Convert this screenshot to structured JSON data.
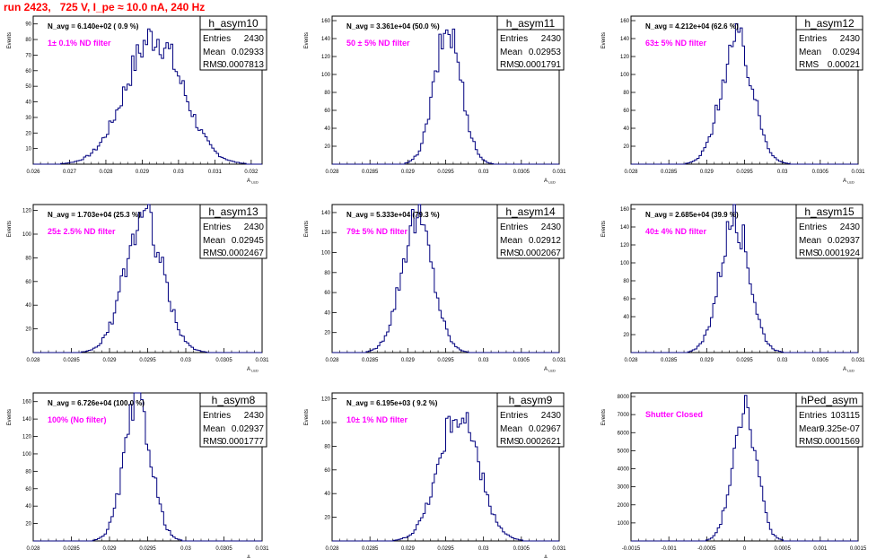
{
  "header": {
    "title": "run 2423,   725 V, I_pe ≈ 10.0 nA, 240 Hz"
  },
  "colors": {
    "histogram_line": "#00007f",
    "note": "#ff00ff",
    "header": "#ff0000",
    "frame": "#000000"
  },
  "chart_data": [
    {
      "type": "histogram",
      "hist_name": "h_asym10",
      "nav_label": "N_avg = 6.140e+02 ( 0.9 %)",
      "note": "1± 0.1% ND filter",
      "stats": {
        "entries": "2430",
        "mean": "0.02933",
        "rms": "0.0007813"
      },
      "ylabel": "Events",
      "xlabel": "A_LED",
      "xlim": [
        0.026,
        0.0323
      ],
      "ylim": [
        0,
        95
      ],
      "xticks": [
        "0.026",
        "0.027",
        "0.028",
        "0.029",
        "0.03",
        "0.031",
        "0.032"
      ],
      "xtick_values": [
        0.026,
        0.027,
        0.028,
        0.029,
        0.03,
        0.031,
        0.032
      ],
      "yticks": [
        "10",
        "20",
        "30",
        "40",
        "50",
        "60",
        "70",
        "80",
        "90"
      ],
      "ytick_values": [
        10,
        20,
        30,
        40,
        50,
        60,
        70,
        80,
        90
      ],
      "gauss": {
        "mu": 0.02933,
        "sigma": 0.00078,
        "peak": 82
      }
    },
    {
      "type": "histogram",
      "hist_name": "h_asym11",
      "nav_label": "N_avg = 3.361e+04 (50.0 %)",
      "note": "50 ± 5% ND filter",
      "stats": {
        "entries": "2430",
        "mean": "0.02953",
        "rms": "0.0001791"
      },
      "ylabel": "Events",
      "xlabel": "A_LED",
      "xlim": [
        0.028,
        0.031
      ],
      "ylim": [
        0,
        165
      ],
      "xticks": [
        "0.028",
        "0.0285",
        "0.029",
        "0.0295",
        "0.03",
        "0.0305",
        "0.031"
      ],
      "xtick_values": [
        0.028,
        0.0285,
        0.029,
        0.0295,
        0.03,
        0.0305,
        0.031
      ],
      "yticks": [
        "20",
        "40",
        "60",
        "80",
        "100",
        "120",
        "140",
        "160"
      ],
      "ytick_values": [
        20,
        40,
        60,
        80,
        100,
        120,
        140,
        160
      ],
      "gauss": {
        "mu": 0.02953,
        "sigma": 0.000179,
        "peak": 150
      }
    },
    {
      "type": "histogram",
      "hist_name": "h_asym12",
      "nav_label": "N_avg = 4.212e+04 (62.6 %)",
      "note": "63± 5% ND filter",
      "stats": {
        "entries": "2430",
        "mean": "0.0294",
        "rms": "0.00021"
      },
      "ylabel": "Events",
      "xlabel": "A_LED",
      "xlim": [
        0.028,
        0.031
      ],
      "ylim": [
        0,
        165
      ],
      "xticks": [
        "0.028",
        "0.0285",
        "0.029",
        "0.0295",
        "0.03",
        "0.0305",
        "0.031"
      ],
      "xtick_values": [
        0.028,
        0.0285,
        0.029,
        0.0295,
        0.03,
        0.0305,
        0.031
      ],
      "yticks": [
        "20",
        "40",
        "60",
        "80",
        "100",
        "120",
        "140",
        "160"
      ],
      "ytick_values": [
        20,
        40,
        60,
        80,
        100,
        120,
        140,
        160
      ],
      "gauss": {
        "mu": 0.0294,
        "sigma": 0.00021,
        "peak": 138
      }
    },
    {
      "type": "histogram",
      "hist_name": "h_asym13",
      "nav_label": "N_avg = 1.703e+04 (25.3 %)",
      "note": "25± 2.5% ND filter",
      "stats": {
        "entries": "2430",
        "mean": "0.02945",
        "rms": "0.0002467"
      },
      "ylabel": "Events",
      "xlabel": "A_LED",
      "xlim": [
        0.028,
        0.031
      ],
      "ylim": [
        0,
        125
      ],
      "xticks": [
        "0.028",
        "0.0285",
        "0.029",
        "0.0295",
        "0.03",
        "0.0305",
        "0.031"
      ],
      "xtick_values": [
        0.028,
        0.0285,
        0.029,
        0.0295,
        0.03,
        0.0305,
        0.031
      ],
      "yticks": [
        "20",
        "40",
        "60",
        "80",
        "100",
        "120"
      ],
      "ytick_values": [
        20,
        40,
        60,
        80,
        100,
        120
      ],
      "gauss": {
        "mu": 0.02945,
        "sigma": 0.000247,
        "peak": 115
      }
    },
    {
      "type": "histogram",
      "hist_name": "h_asym14",
      "nav_label": "N_avg = 5.333e+04 (79.3 %)",
      "note": "79± 5% ND filter",
      "stats": {
        "entries": "2430",
        "mean": "0.02912",
        "rms": "0.0002067"
      },
      "ylabel": "Events",
      "xlabel": "A_LED",
      "xlim": [
        0.028,
        0.031
      ],
      "ylim": [
        0,
        148
      ],
      "xticks": [
        "0.028",
        "0.0285",
        "0.029",
        "0.0295",
        "0.03",
        "0.0305",
        "0.031"
      ],
      "xtick_values": [
        0.028,
        0.0285,
        0.029,
        0.0295,
        0.03,
        0.0305,
        0.031
      ],
      "yticks": [
        "20",
        "40",
        "60",
        "80",
        "100",
        "120",
        "140"
      ],
      "ytick_values": [
        20,
        40,
        60,
        80,
        100,
        120,
        140
      ],
      "gauss": {
        "mu": 0.02912,
        "sigma": 0.000207,
        "peak": 135
      }
    },
    {
      "type": "histogram",
      "hist_name": "h_asym15",
      "nav_label": "N_avg = 2.685e+04 (39.9 %)",
      "note": "40± 4% ND filter",
      "stats": {
        "entries": "2430",
        "mean": "0.02937",
        "rms": "0.0001924"
      },
      "ylabel": "Events",
      "xlabel": "A_LED",
      "xlim": [
        0.028,
        0.031
      ],
      "ylim": [
        0,
        165
      ],
      "xticks": [
        "0.028",
        "0.0285",
        "0.029",
        "0.0295",
        "0.03",
        "0.0305",
        "0.031"
      ],
      "xtick_values": [
        0.028,
        0.0285,
        0.029,
        0.0295,
        0.03,
        0.0305,
        0.031
      ],
      "yticks": [
        "20",
        "40",
        "60",
        "80",
        "100",
        "120",
        "140",
        "160"
      ],
      "ytick_values": [
        20,
        40,
        60,
        80,
        100,
        120,
        140,
        160
      ],
      "gauss": {
        "mu": 0.02937,
        "sigma": 0.000192,
        "peak": 150
      }
    },
    {
      "type": "histogram",
      "hist_name": "h_asym8",
      "nav_label": "N_avg = 6.726e+04 (100.0 %)",
      "note": "100% (No filter)",
      "stats": {
        "entries": "2430",
        "mean": "0.02937",
        "rms": "0.0001777"
      },
      "ylabel": "Events",
      "xlabel": "A_LED",
      "xlim": [
        0.028,
        0.031
      ],
      "ylim": [
        0,
        170
      ],
      "xticks": [
        "0.028",
        "0.0285",
        "0.029",
        "0.0295",
        "0.03",
        "0.0305",
        "0.031"
      ],
      "xtick_values": [
        0.028,
        0.0285,
        0.029,
        0.0295,
        0.03,
        0.0305,
        0.031
      ],
      "yticks": [
        "20",
        "40",
        "60",
        "80",
        "100",
        "120",
        "140",
        "160"
      ],
      "ytick_values": [
        20,
        40,
        60,
        80,
        100,
        120,
        140,
        160
      ],
      "gauss": {
        "mu": 0.02937,
        "sigma": 0.000178,
        "peak": 158
      }
    },
    {
      "type": "histogram",
      "hist_name": "h_asym9",
      "nav_label": "N_avg = 6.195e+03 ( 9.2 %)",
      "note": "10± 1% ND filter",
      "stats": {
        "entries": "2430",
        "mean": "0.02967",
        "rms": "0.0002621"
      },
      "ylabel": "Events",
      "xlabel": "A_LED",
      "xlim": [
        0.028,
        0.031
      ],
      "ylim": [
        0,
        125
      ],
      "xticks": [
        "0.028",
        "0.0285",
        "0.029",
        "0.0295",
        "0.03",
        "0.0305",
        "0.031"
      ],
      "xtick_values": [
        0.028,
        0.0285,
        0.029,
        0.0295,
        0.03,
        0.0305,
        0.031
      ],
      "yticks": [
        "20",
        "40",
        "60",
        "80",
        "100",
        "120"
      ],
      "ytick_values": [
        20,
        40,
        60,
        80,
        100,
        120
      ],
      "gauss": {
        "mu": 0.02967,
        "sigma": 0.000262,
        "peak": 108
      }
    },
    {
      "type": "histogram",
      "hist_name": "hPed_asym",
      "nav_label": "",
      "note": "Shutter Closed",
      "stats": {
        "entries": "103115",
        "mean": "9.325e-07",
        "rms": "0.0001569"
      },
      "ylabel": "Events",
      "xlabel": "",
      "xlim": [
        -0.0015,
        0.0015
      ],
      "ylim": [
        0,
        8200
      ],
      "xticks": [
        "-0.0015",
        "-0.001",
        "-0.0005",
        "0",
        "0.0005",
        "0.001",
        "0.0015"
      ],
      "xtick_values": [
        -0.0015,
        -0.001,
        -0.0005,
        0,
        0.0005,
        0.001,
        0.0015
      ],
      "yticks": [
        "1000",
        "2000",
        "3000",
        "4000",
        "5000",
        "6000",
        "7000",
        "8000"
      ],
      "ytick_values": [
        1000,
        2000,
        3000,
        4000,
        5000,
        6000,
        7000,
        8000
      ],
      "gauss": {
        "mu": 0.0,
        "sigma": 0.000157,
        "peak": 7600
      }
    }
  ]
}
